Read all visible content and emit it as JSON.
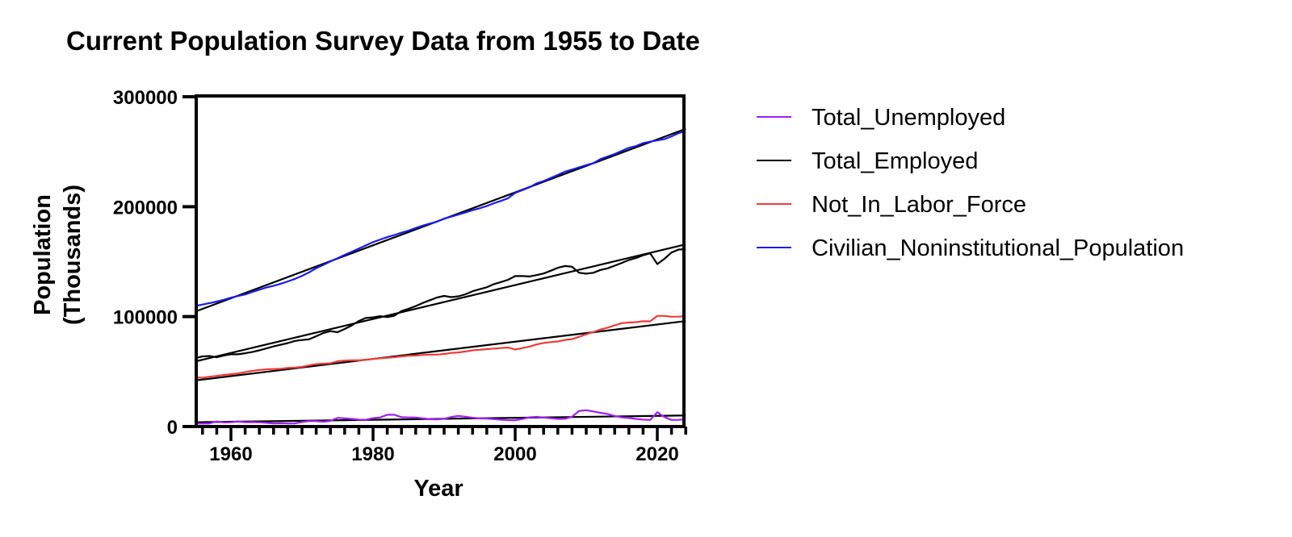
{
  "chart_data": {
    "type": "line",
    "title": "Current Population Survey Data from 1955 to Date",
    "xlabel": "Year",
    "ylabel": "Population\n(Thousands)",
    "ylabel_lines": [
      "Population",
      "(Thousands)"
    ],
    "xlim": [
      1955,
      2025.5
    ],
    "ylim": [
      0,
      300000
    ],
    "xticks": [
      1960,
      1980,
      2000,
      2020
    ],
    "xtick_labels": [
      "1960",
      "1980",
      "2000",
      "2020"
    ],
    "xminor_step": 2,
    "yticks": [
      0,
      100000,
      200000,
      300000
    ],
    "ytick_labels": [
      "0",
      "100000",
      "200000",
      "300000"
    ],
    "grid": false,
    "legend_position": "right",
    "trendlines": "linear fit per series (black)",
    "x": [
      1955,
      1956,
      1957,
      1958,
      1959,
      1960,
      1961,
      1962,
      1963,
      1964,
      1965,
      1966,
      1967,
      1968,
      1969,
      1970,
      1971,
      1972,
      1973,
      1974,
      1975,
      1976,
      1977,
      1978,
      1979,
      1980,
      1981,
      1982,
      1983,
      1984,
      1985,
      1986,
      1987,
      1988,
      1989,
      1990,
      1991,
      1992,
      1993,
      1994,
      1995,
      1996,
      1997,
      1998,
      1999,
      2000,
      2001,
      2002,
      2003,
      2004,
      2005,
      2006,
      2007,
      2008,
      2009,
      2010,
      2011,
      2012,
      2013,
      2014,
      2015,
      2016,
      2017,
      2018,
      2019,
      2020,
      2021,
      2022,
      2023,
      2024
    ],
    "series": [
      {
        "name": "Total_Unemployed",
        "color": "#a020f0",
        "values": [
          2852,
          2750,
          2859,
          4602,
          3740,
          3852,
          4714,
          3911,
          4070,
          3786,
          3366,
          2875,
          2975,
          2817,
          2832,
          4093,
          5016,
          4882,
          4365,
          5156,
          7929,
          7406,
          6991,
          6202,
          6137,
          7637,
          8273,
          10678,
          10717,
          8539,
          8312,
          8237,
          7425,
          6701,
          6528,
          7047,
          8628,
          9613,
          8940,
          7996,
          7404,
          7236,
          6739,
          6210,
          5880,
          5692,
          6801,
          8378,
          8774,
          8149,
          7591,
          7001,
          7078,
          8924,
          14265,
          14825,
          13747,
          12506,
          11460,
          9617,
          8296,
          7751,
          6982,
          6314,
          6001,
          12947,
          8623,
          5996,
          6080,
          6761
        ]
      },
      {
        "name": "Total_Employed",
        "color": "#000000",
        "values": [
          62170,
          63799,
          64071,
          63036,
          64630,
          65778,
          65746,
          66702,
          67762,
          69305,
          71088,
          72895,
          74372,
          75920,
          77902,
          78678,
          79367,
          82153,
          85064,
          86794,
          85846,
          88752,
          92017,
          96048,
          98824,
          99303,
          100397,
          99526,
          100834,
          105005,
          107150,
          109597,
          112440,
          114968,
          117342,
          118793,
          117718,
          118492,
          120259,
          123060,
          124900,
          126708,
          129558,
          131463,
          133488,
          136891,
          136933,
          136485,
          137736,
          139252,
          141730,
          144427,
          146047,
          145362,
          139877,
          139064,
          139869,
          142469,
          143929,
          146305,
          148834,
          151436,
          153337,
          155761,
          157538,
          147795,
          152581,
          158291,
          161037,
          161346
        ]
      },
      {
        "name": "Not_In_Labor_Force",
        "color": "#ee3b3b",
        "values": [
          44660,
          44402,
          45336,
          46088,
          46960,
          47617,
          48312,
          49539,
          50583,
          51394,
          52058,
          52288,
          52527,
          53291,
          53602,
          54315,
          55666,
          56785,
          57222,
          57587,
          59377,
          60025,
          60239,
          60197,
          60805,
          61460,
          62067,
          62665,
          63047,
          63835,
          64411,
          64619,
          65051,
          65437,
          65405,
          65995,
          66971,
          67410,
          68260,
          69289,
          69762,
          70381,
          70920,
          71400,
          71917,
          70080,
          71359,
          72707,
          74658,
          75956,
          76762,
          77387,
          78743,
          79501,
          81659,
          83941,
          86001,
          88310,
          89904,
          92025,
          94009,
          94656,
          95022,
          95803,
          95742,
          100662,
          100646,
          99916,
          99947,
          100500
        ]
      },
      {
        "name": "Civilian_Noninstitutional_Population",
        "color": "#1a1aee",
        "values": [
          109683,
          110954,
          112265,
          113727,
          115329,
          117245,
          118771,
          120153,
          122416,
          124485,
          126513,
          128058,
          129874,
          132028,
          134335,
          137085,
          140216,
          144126,
          147096,
          150120,
          153153,
          156150,
          159033,
          161910,
          164863,
          167745,
          170130,
          172271,
          174215,
          176383,
          178206,
          180587,
          182753,
          184613,
          186393,
          189164,
          190925,
          192805,
          194838,
          196814,
          198584,
          200591,
          203133,
          205220,
          207753,
          212577,
          215092,
          217570,
          221168,
          223357,
          226082,
          228815,
          231867,
          233788,
          235801,
          237830,
          239618,
          243284,
          245679,
          247947,
          250801,
          253538,
          255079,
          257791,
          259175,
          260329,
          261445,
          263973,
          266942,
          268700
        ]
      }
    ]
  }
}
